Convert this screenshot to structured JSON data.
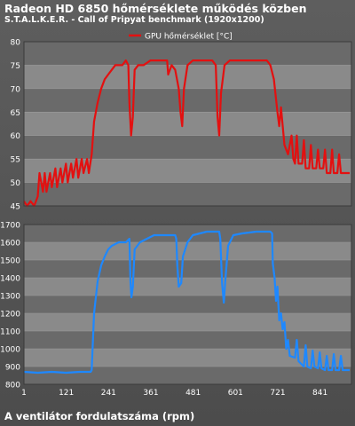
{
  "title": "Radeon HD 6850 hőmérséklete működés közben",
  "subtitle": "S.T.A.L.K.E.R. - Call of Pripyat benchmark (1920x1200)",
  "caption": "A ventilátor fordulatszáma (rpm)",
  "colors": {
    "temperature": "#e31010",
    "fan": "#1e88ff",
    "band_dark": "#6a6a6a",
    "band_light": "#8a8a8a"
  },
  "chart_data": [
    {
      "type": "line",
      "legend_position": "top-center",
      "xlim": [
        1,
        930
      ],
      "ylim": [
        45,
        80
      ],
      "yticks": [
        45,
        50,
        55,
        60,
        65,
        70,
        75,
        80
      ],
      "series": [
        {
          "name": "GPU hőmérséklet [°C]",
          "points": [
            [
              1,
              46
            ],
            [
              10,
              45
            ],
            [
              20,
              46
            ],
            [
              30,
              45
            ],
            [
              40,
              47
            ],
            [
              45,
              52
            ],
            [
              55,
              48
            ],
            [
              60,
              52
            ],
            [
              65,
              48
            ],
            [
              75,
              52
            ],
            [
              80,
              49
            ],
            [
              90,
              53
            ],
            [
              95,
              49
            ],
            [
              105,
              53
            ],
            [
              110,
              50
            ],
            [
              120,
              54
            ],
            [
              125,
              50
            ],
            [
              135,
              54
            ],
            [
              140,
              51
            ],
            [
              150,
              55
            ],
            [
              155,
              51
            ],
            [
              165,
              55
            ],
            [
              170,
              52
            ],
            [
              180,
              55
            ],
            [
              185,
              52
            ],
            [
              193,
              56
            ],
            [
              200,
              63
            ],
            [
              210,
              67
            ],
            [
              220,
              70
            ],
            [
              230,
              72
            ],
            [
              240,
              73
            ],
            [
              250,
              74
            ],
            [
              260,
              75
            ],
            [
              270,
              75
            ],
            [
              280,
              75
            ],
            [
              290,
              76
            ],
            [
              297,
              75
            ],
            [
              300,
              67
            ],
            [
              305,
              60
            ],
            [
              310,
              64
            ],
            [
              315,
              74
            ],
            [
              325,
              75
            ],
            [
              340,
              75
            ],
            [
              360,
              76
            ],
            [
              380,
              76
            ],
            [
              395,
              76
            ],
            [
              407,
              76
            ],
            [
              410,
              73
            ],
            [
              420,
              75
            ],
            [
              430,
              74
            ],
            [
              440,
              70
            ],
            [
              445,
              65
            ],
            [
              450,
              62
            ],
            [
              455,
              70
            ],
            [
              465,
              75
            ],
            [
              480,
              76
            ],
            [
              500,
              76
            ],
            [
              520,
              76
            ],
            [
              535,
              76
            ],
            [
              545,
              75
            ],
            [
              550,
              64
            ],
            [
              555,
              60
            ],
            [
              560,
              69
            ],
            [
              570,
              75
            ],
            [
              585,
              76
            ],
            [
              600,
              76
            ],
            [
              620,
              76
            ],
            [
              640,
              76
            ],
            [
              660,
              76
            ],
            [
              680,
              76
            ],
            [
              690,
              76
            ],
            [
              700,
              75
            ],
            [
              710,
              72
            ],
            [
              720,
              65
            ],
            [
              725,
              62
            ],
            [
              730,
              66
            ],
            [
              740,
              58
            ],
            [
              750,
              56
            ],
            [
              760,
              60
            ],
            [
              765,
              55
            ],
            [
              770,
              54
            ],
            [
              775,
              60
            ],
            [
              780,
              54
            ],
            [
              790,
              54
            ],
            [
              795,
              59
            ],
            [
              800,
              53
            ],
            [
              810,
              53
            ],
            [
              815,
              58
            ],
            [
              820,
              53
            ],
            [
              830,
              53
            ],
            [
              835,
              57
            ],
            [
              840,
              53
            ],
            [
              850,
              53
            ],
            [
              855,
              57
            ],
            [
              860,
              52
            ],
            [
              870,
              52
            ],
            [
              875,
              57
            ],
            [
              880,
              52
            ],
            [
              890,
              52
            ],
            [
              895,
              56
            ],
            [
              900,
              52
            ],
            [
              915,
              52
            ],
            [
              925,
              52
            ]
          ]
        }
      ]
    },
    {
      "type": "line",
      "xlim": [
        1,
        930
      ],
      "ylim": [
        800,
        1700
      ],
      "yticks": [
        800,
        900,
        1000,
        1100,
        1200,
        1300,
        1400,
        1500,
        1600,
        1700
      ],
      "xticks": [
        "1",
        "121",
        "241",
        "361",
        "481",
        "601",
        "721",
        "841"
      ],
      "series": [
        {
          "name": "",
          "points": [
            [
              1,
              870
            ],
            [
              40,
              865
            ],
            [
              80,
              870
            ],
            [
              120,
              865
            ],
            [
              160,
              870
            ],
            [
              190,
              870
            ],
            [
              193,
              880
            ],
            [
              200,
              1200
            ],
            [
              210,
              1380
            ],
            [
              220,
              1470
            ],
            [
              230,
              1520
            ],
            [
              240,
              1560
            ],
            [
              250,
              1580
            ],
            [
              270,
              1600
            ],
            [
              290,
              1600
            ],
            [
              300,
              1620
            ],
            [
              303,
              1380
            ],
            [
              306,
              1290
            ],
            [
              310,
              1350
            ],
            [
              315,
              1560
            ],
            [
              330,
              1600
            ],
            [
              350,
              1620
            ],
            [
              370,
              1640
            ],
            [
              400,
              1640
            ],
            [
              430,
              1640
            ],
            [
              433,
              1620
            ],
            [
              436,
              1470
            ],
            [
              440,
              1350
            ],
            [
              447,
              1370
            ],
            [
              452,
              1520
            ],
            [
              465,
              1600
            ],
            [
              480,
              1640
            ],
            [
              520,
              1660
            ],
            [
              540,
              1660
            ],
            [
              555,
              1660
            ],
            [
              558,
              1620
            ],
            [
              563,
              1370
            ],
            [
              568,
              1260
            ],
            [
              572,
              1380
            ],
            [
              580,
              1580
            ],
            [
              595,
              1640
            ],
            [
              620,
              1650
            ],
            [
              660,
              1660
            ],
            [
              700,
              1660
            ],
            [
              705,
              1650
            ],
            [
              707,
              1480
            ],
            [
              712,
              1400
            ],
            [
              716,
              1270
            ],
            [
              720,
              1350
            ],
            [
              725,
              1160
            ],
            [
              730,
              1200
            ],
            [
              735,
              1110
            ],
            [
              740,
              1150
            ],
            [
              745,
              1000
            ],
            [
              750,
              1050
            ],
            [
              755,
              960
            ],
            [
              770,
              950
            ],
            [
              775,
              1050
            ],
            [
              780,
              930
            ],
            [
              795,
              900
            ],
            [
              800,
              1020
            ],
            [
              805,
              900
            ],
            [
              815,
              890
            ],
            [
              820,
              990
            ],
            [
              825,
              900
            ],
            [
              835,
              890
            ],
            [
              840,
              980
            ],
            [
              845,
              890
            ],
            [
              855,
              880
            ],
            [
              860,
              960
            ],
            [
              865,
              880
            ],
            [
              875,
              880
            ],
            [
              880,
              970
            ],
            [
              885,
              880
            ],
            [
              895,
              880
            ],
            [
              900,
              960
            ],
            [
              905,
              880
            ],
            [
              925,
              880
            ]
          ]
        }
      ]
    }
  ]
}
